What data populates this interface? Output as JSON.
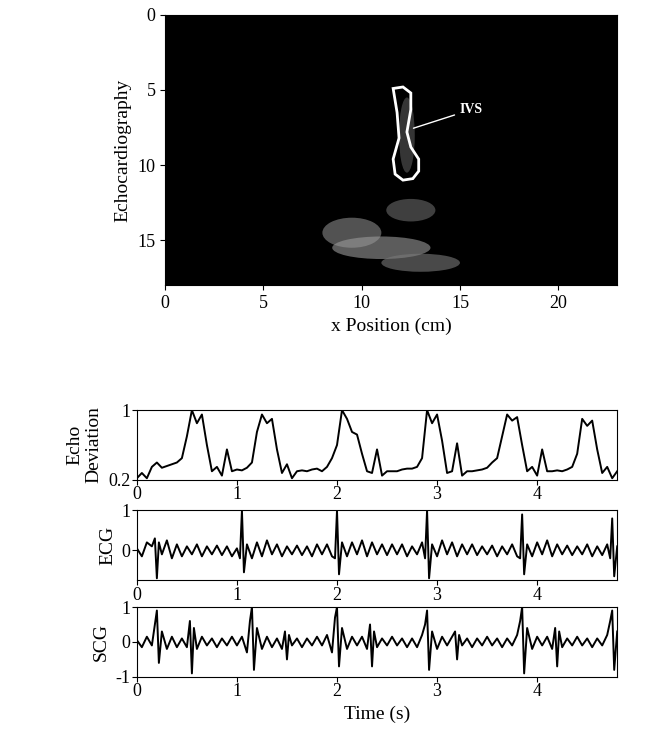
{
  "chart_data": [
    {
      "type": "image",
      "ylabel": "Echocardiography",
      "xlabel": "x Position (cm)",
      "xlim": [
        0,
        23
      ],
      "xticks": [
        0,
        5,
        10,
        15,
        20
      ],
      "ylim": [
        18,
        0
      ],
      "yticks": [
        0,
        5,
        10,
        15
      ],
      "outline": {
        "color": "#ffffff",
        "x": [
          11.6,
          12.1,
          12.5,
          12.5,
          12.3,
          12.5,
          12.9,
          12.9,
          12.6,
          12.1,
          11.7,
          11.6,
          11.9,
          11.8,
          11.6
        ],
        "y": [
          4.9,
          4.8,
          5.2,
          6.3,
          7.8,
          8.8,
          9.6,
          10.4,
          10.9,
          11.0,
          10.6,
          9.6,
          8.2,
          6.5,
          4.9
        ]
      },
      "annotation": {
        "text": "IVS",
        "x": 15.0,
        "y": 6.3,
        "target_x": 12.5,
        "target_y": 7.6
      }
    },
    {
      "type": "line",
      "ylabel": "Echo\nDeviation",
      "xlim": [
        0,
        4.8
      ],
      "xticks": [
        0,
        1,
        2,
        3,
        4
      ],
      "ylim": [
        0.2,
        1
      ],
      "yticks": [
        0.2,
        1
      ],
      "color": "#000000",
      "x": [
        0,
        0.05,
        0.1,
        0.15,
        0.2,
        0.25,
        0.3,
        0.35,
        0.4,
        0.45,
        0.5,
        0.55,
        0.6,
        0.65,
        0.7,
        0.75,
        0.8,
        0.85,
        0.9,
        0.95,
        1.0,
        1.05,
        1.1,
        1.15,
        1.2,
        1.25,
        1.3,
        1.35,
        1.4,
        1.45,
        1.5,
        1.55,
        1.6,
        1.65,
        1.7,
        1.75,
        1.8,
        1.85,
        1.9,
        1.95,
        2.0,
        2.05,
        2.1,
        2.15,
        2.2,
        2.25,
        2.3,
        2.35,
        2.4,
        2.45,
        2.5,
        2.55,
        2.6,
        2.65,
        2.7,
        2.75,
        2.8,
        2.85,
        2.9,
        2.95,
        3.0,
        3.05,
        3.1,
        3.15,
        3.2,
        3.25,
        3.3,
        3.35,
        3.4,
        3.45,
        3.5,
        3.55,
        3.6,
        3.65,
        3.7,
        3.75,
        3.8,
        3.85,
        3.9,
        3.95,
        4.0,
        4.05,
        4.1,
        4.15,
        4.2,
        4.25,
        4.3,
        4.35,
        4.4,
        4.45,
        4.5,
        4.55,
        4.6,
        4.65,
        4.7,
        4.75,
        4.8
      ],
      "values": [
        0.22,
        0.28,
        0.22,
        0.35,
        0.4,
        0.34,
        0.36,
        0.38,
        0.4,
        0.45,
        0.7,
        1.0,
        0.85,
        0.95,
        0.6,
        0.3,
        0.35,
        0.25,
        0.55,
        0.3,
        0.32,
        0.31,
        0.34,
        0.4,
        0.75,
        0.95,
        0.85,
        0.9,
        0.55,
        0.28,
        0.38,
        0.22,
        0.3,
        0.31,
        0.3,
        0.32,
        0.33,
        0.3,
        0.35,
        0.45,
        0.6,
        1.0,
        0.9,
        0.75,
        0.72,
        0.5,
        0.3,
        0.28,
        0.55,
        0.25,
        0.3,
        0.3,
        0.3,
        0.32,
        0.33,
        0.33,
        0.35,
        0.45,
        1.0,
        0.85,
        0.95,
        0.65,
        0.28,
        0.3,
        0.62,
        0.25,
        0.3,
        0.3,
        0.31,
        0.32,
        0.34,
        0.4,
        0.45,
        0.7,
        0.95,
        0.88,
        0.92,
        0.6,
        0.3,
        0.35,
        0.25,
        0.55,
        0.3,
        0.3,
        0.31,
        0.3,
        0.32,
        0.35,
        0.5,
        0.9,
        0.82,
        0.88,
        0.55,
        0.28,
        0.35,
        0.22,
        0.3
      ]
    },
    {
      "type": "line",
      "ylabel": "ECG",
      "xlim": [
        0,
        4.8
      ],
      "xticks": [
        0,
        1,
        2,
        3,
        4
      ],
      "ylim": [
        -0.75,
        1
      ],
      "yticks": [
        0,
        1
      ],
      "color": "#000000",
      "x": [
        0,
        0.05,
        0.1,
        0.15,
        0.18,
        0.2,
        0.22,
        0.25,
        0.3,
        0.35,
        0.4,
        0.45,
        0.5,
        0.55,
        0.6,
        0.65,
        0.7,
        0.75,
        0.8,
        0.85,
        0.9,
        0.95,
        1.0,
        1.03,
        1.05,
        1.07,
        1.1,
        1.15,
        1.2,
        1.25,
        1.3,
        1.35,
        1.4,
        1.45,
        1.5,
        1.55,
        1.6,
        1.65,
        1.7,
        1.75,
        1.8,
        1.85,
        1.9,
        1.95,
        1.98,
        2.0,
        2.02,
        2.05,
        2.1,
        2.15,
        2.2,
        2.25,
        2.3,
        2.35,
        2.4,
        2.45,
        2.5,
        2.55,
        2.6,
        2.65,
        2.7,
        2.75,
        2.8,
        2.85,
        2.88,
        2.9,
        2.92,
        2.95,
        3.0,
        3.05,
        3.1,
        3.15,
        3.2,
        3.25,
        3.3,
        3.35,
        3.4,
        3.45,
        3.5,
        3.55,
        3.6,
        3.65,
        3.7,
        3.75,
        3.8,
        3.83,
        3.85,
        3.87,
        3.9,
        3.95,
        4.0,
        4.05,
        4.1,
        4.15,
        4.2,
        4.25,
        4.3,
        4.35,
        4.4,
        4.45,
        4.5,
        4.55,
        4.6,
        4.65,
        4.7,
        4.73,
        4.75,
        4.77,
        4.8
      ],
      "values": [
        0.05,
        -0.15,
        0.2,
        0.1,
        0.3,
        -0.7,
        0.2,
        -0.1,
        0.25,
        -0.2,
        0.15,
        -0.15,
        0.1,
        -0.1,
        0.15,
        -0.15,
        0.1,
        -0.1,
        0.12,
        -0.12,
        0.1,
        -0.15,
        0.05,
        -0.2,
        1.0,
        -0.55,
        0.15,
        -0.2,
        0.2,
        -0.15,
        0.25,
        -0.1,
        0.15,
        -0.15,
        0.1,
        -0.1,
        0.12,
        -0.12,
        0.1,
        -0.15,
        0.15,
        -0.1,
        0.15,
        -0.15,
        -0.2,
        1.0,
        -0.6,
        0.2,
        -0.15,
        0.2,
        -0.1,
        0.25,
        -0.15,
        0.2,
        -0.1,
        0.15,
        -0.12,
        0.15,
        -0.1,
        0.15,
        -0.15,
        0.1,
        -0.1,
        0.2,
        -0.2,
        1.0,
        -0.7,
        0.15,
        -0.15,
        0.25,
        -0.1,
        0.2,
        -0.15,
        0.15,
        -0.1,
        0.15,
        -0.12,
        0.1,
        -0.1,
        0.12,
        -0.15,
        0.1,
        -0.1,
        0.15,
        -0.15,
        -0.2,
        0.9,
        -0.6,
        0.15,
        -0.15,
        0.2,
        -0.1,
        0.25,
        -0.15,
        0.15,
        -0.1,
        0.12,
        -0.12,
        0.1,
        -0.1,
        0.15,
        -0.15,
        0.1,
        -0.12,
        0.15,
        -0.2,
        0.8,
        -0.65,
        0.1
      ]
    },
    {
      "type": "line",
      "ylabel": "SCG",
      "xlabel": "Time (s)",
      "xlim": [
        0,
        4.8
      ],
      "xticks": [
        0,
        1,
        2,
        3,
        4
      ],
      "ylim": [
        -1,
        1
      ],
      "yticks": [
        -1,
        0,
        1
      ],
      "color": "#000000",
      "x": [
        0,
        0.05,
        0.1,
        0.15,
        0.18,
        0.2,
        0.22,
        0.25,
        0.3,
        0.35,
        0.4,
        0.45,
        0.5,
        0.53,
        0.55,
        0.57,
        0.6,
        0.65,
        0.7,
        0.75,
        0.8,
        0.85,
        0.9,
        0.95,
        1.0,
        1.05,
        1.1,
        1.13,
        1.15,
        1.17,
        1.2,
        1.25,
        1.3,
        1.35,
        1.4,
        1.45,
        1.48,
        1.5,
        1.52,
        1.55,
        1.6,
        1.65,
        1.7,
        1.75,
        1.8,
        1.85,
        1.9,
        1.95,
        1.98,
        2.0,
        2.02,
        2.05,
        2.1,
        2.15,
        2.2,
        2.25,
        2.3,
        2.33,
        2.35,
        2.37,
        2.4,
        2.45,
        2.5,
        2.55,
        2.6,
        2.65,
        2.7,
        2.75,
        2.8,
        2.85,
        2.88,
        2.9,
        2.92,
        2.95,
        3.0,
        3.05,
        3.1,
        3.15,
        3.18,
        3.2,
        3.22,
        3.25,
        3.3,
        3.35,
        3.4,
        3.45,
        3.5,
        3.55,
        3.6,
        3.65,
        3.7,
        3.75,
        3.8,
        3.83,
        3.85,
        3.87,
        3.9,
        3.95,
        4.0,
        4.05,
        4.1,
        4.15,
        4.18,
        4.2,
        4.22,
        4.25,
        4.3,
        4.35,
        4.4,
        4.45,
        4.5,
        4.55,
        4.6,
        4.65,
        4.7,
        4.73,
        4.75,
        4.77,
        4.8
      ],
      "values": [
        0.05,
        -0.15,
        0.15,
        -0.1,
        0.5,
        0.9,
        -0.6,
        0.3,
        -0.2,
        0.15,
        -0.15,
        0.1,
        -0.15,
        0.6,
        -0.9,
        0.4,
        -0.2,
        0.15,
        -0.1,
        0.1,
        -0.15,
        0.1,
        -0.1,
        0.15,
        -0.1,
        0.15,
        -0.3,
        0.6,
        1.0,
        -0.8,
        0.4,
        -0.2,
        0.15,
        -0.15,
        0.1,
        -0.2,
        0.3,
        -0.5,
        0.2,
        -0.1,
        0.1,
        -0.15,
        0.1,
        -0.1,
        0.15,
        -0.1,
        0.2,
        -0.3,
        0.7,
        1.0,
        -0.7,
        0.4,
        -0.2,
        0.15,
        -0.1,
        0.15,
        -0.2,
        0.5,
        -0.7,
        0.3,
        -0.15,
        0.1,
        -0.1,
        0.15,
        -0.1,
        0.1,
        -0.15,
        0.1,
        -0.15,
        0.2,
        0.5,
        0.9,
        -0.8,
        0.3,
        -0.2,
        0.15,
        -0.1,
        0.15,
        0.3,
        -0.5,
        0.2,
        -0.1,
        0.1,
        -0.15,
        0.1,
        -0.1,
        0.15,
        -0.1,
        0.1,
        -0.15,
        0.1,
        -0.1,
        0.2,
        0.6,
        1.0,
        -0.9,
        0.4,
        -0.2,
        0.15,
        -0.1,
        0.15,
        -0.2,
        0.4,
        -0.7,
        0.3,
        -0.15,
        0.1,
        -0.1,
        0.15,
        -0.1,
        0.1,
        -0.15,
        0.1,
        -0.1,
        0.2,
        0.6,
        0.9,
        -0.8,
        0.3
      ]
    }
  ]
}
